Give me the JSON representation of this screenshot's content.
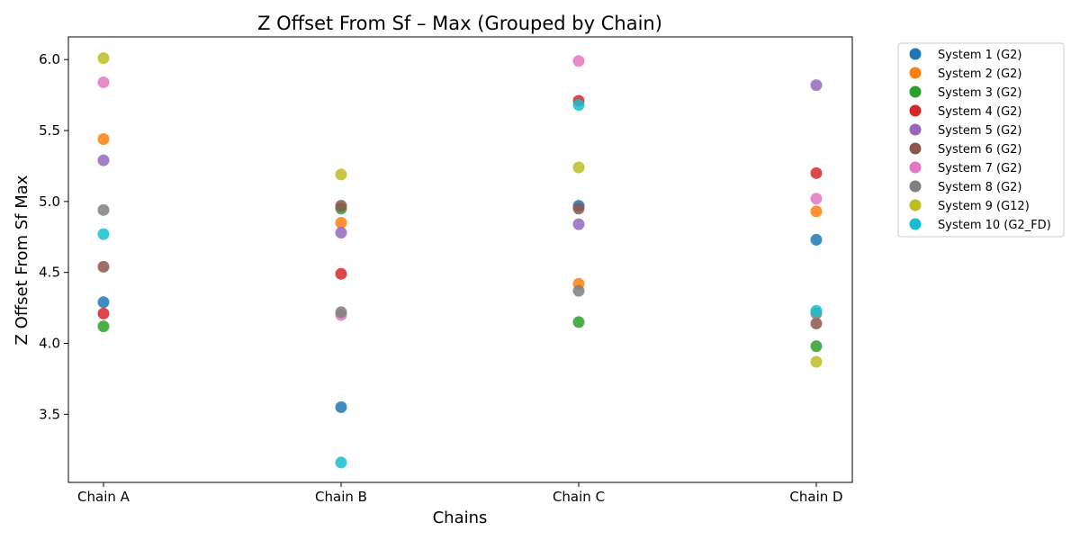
{
  "chart_data": {
    "type": "scatter",
    "title": "Z Offset From Sf – Max (Grouped by Chain)",
    "xlabel": "Chains",
    "ylabel": "Z Offset From Sf Max",
    "categories": [
      "Chain A",
      "Chain B",
      "Chain C",
      "Chain D"
    ],
    "ylim": [
      3.02,
      6.16
    ],
    "yticks": [
      3.5,
      4.0,
      4.5,
      5.0,
      5.5,
      6.0
    ],
    "ytick_labels": [
      "3.5",
      "4.0",
      "4.5",
      "5.0",
      "5.5",
      "6.0"
    ],
    "grid": false,
    "legend_position": "outside-right-top",
    "series": [
      {
        "name": "System 1 (G2)",
        "color": "#1f77b4",
        "values": [
          4.29,
          3.55,
          4.97,
          4.73
        ]
      },
      {
        "name": "System 2 (G2)",
        "color": "#ff7f0e",
        "values": [
          5.44,
          4.85,
          4.42,
          4.93
        ]
      },
      {
        "name": "System 3 (G2)",
        "color": "#2ca02c",
        "values": [
          4.12,
          4.95,
          4.15,
          3.98
        ]
      },
      {
        "name": "System 4 (G2)",
        "color": "#d62728",
        "values": [
          4.21,
          4.49,
          5.71,
          5.2
        ]
      },
      {
        "name": "System 5 (G2)",
        "color": "#9467bd",
        "values": [
          5.29,
          4.78,
          4.84,
          5.82
        ]
      },
      {
        "name": "System 6 (G2)",
        "color": "#8c564b",
        "values": [
          4.54,
          4.97,
          4.95,
          4.14
        ]
      },
      {
        "name": "System 7 (G2)",
        "color": "#e377c2",
        "values": [
          5.84,
          4.2,
          5.99,
          5.02
        ]
      },
      {
        "name": "System 8 (G2)",
        "color": "#7f7f7f",
        "values": [
          4.94,
          4.22,
          4.37,
          4.21
        ]
      },
      {
        "name": "System 9 (G12)",
        "color": "#bcbd22",
        "values": [
          6.01,
          5.19,
          5.24,
          3.87
        ]
      },
      {
        "name": "System 10 (G2_FD)",
        "color": "#17becf",
        "values": [
          4.77,
          3.16,
          5.68,
          4.23
        ]
      }
    ]
  }
}
